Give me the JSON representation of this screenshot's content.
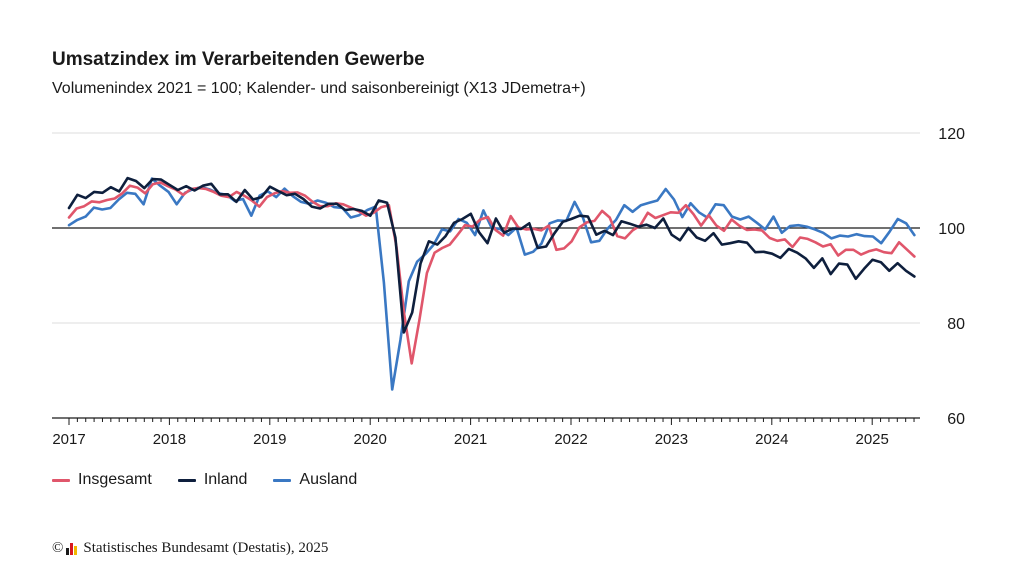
{
  "header": {
    "title": "Umsatzindex im Verarbeitenden Gewerbe",
    "subtitle": "Volumenindex 2021 = 100; Kalender- und saisonbereinigt (X13 JDemetra+)"
  },
  "footer": {
    "copyright_symbol": "©",
    "source": "Statistisches Bundesamt (Destatis), 2025",
    "logo_colors": [
      "#1a1a1a",
      "#d71920",
      "#f2b800"
    ]
  },
  "chart_data": {
    "type": "line",
    "ylim": [
      60,
      120
    ],
    "yticks": [
      60,
      80,
      100,
      120
    ],
    "reference_line": 100,
    "x_start_year": 2017,
    "x_end_year": 2025.42,
    "xticks": [
      "2017",
      "2018",
      "2019",
      "2020",
      "2021",
      "2022",
      "2023",
      "2024",
      "2025"
    ],
    "grid": true,
    "legend_position": "bottom-left",
    "series": [
      {
        "name": "Insgesamt",
        "color": "#e0566b",
        "values": [
          102.2,
          104.1,
          104.6,
          105.6,
          105.4,
          105.9,
          106.2,
          107.3,
          108.9,
          108.5,
          107.3,
          109.2,
          109.6,
          108.8,
          108.1,
          107.0,
          108.2,
          108.4,
          108.2,
          107.6,
          106.8,
          106.5,
          107.6,
          106.8,
          105.8,
          104.5,
          106.5,
          107.3,
          107.8,
          107.4,
          107.5,
          106.8,
          105.5,
          104.6,
          104.6,
          105.2,
          105.0,
          104.3,
          103.6,
          102.6,
          103.2,
          104.4,
          104.8,
          96.0,
          82.0,
          71.5,
          80.5,
          90.5,
          94.8,
          95.8,
          96.5,
          98.5,
          100.6,
          100.3,
          101.8,
          102.3,
          99.6,
          98.4,
          102.5,
          100.1,
          99.7,
          99.8,
          99.5,
          100.5,
          95.4,
          95.7,
          97.2,
          100.1,
          101.2,
          101.5,
          103.6,
          102.2,
          98.3,
          97.8,
          99.5,
          100.5,
          103.2,
          102.1,
          102.7,
          103.3,
          103.2,
          104.8,
          102.9,
          100.5,
          102.7,
          100.5,
          99.4,
          101.8,
          100.5,
          99.6,
          99.7,
          99.5,
          97.9,
          97.3,
          97.6,
          96.0,
          98.0,
          97.7,
          97.0,
          96.1,
          96.6,
          94.2,
          95.4,
          95.4,
          94.4,
          95.1,
          95.5,
          94.9,
          94.7,
          97.0,
          95.5,
          94.0
        ]
      },
      {
        "name": "Inland",
        "color": "#0e1f3d",
        "values": [
          104.2,
          107.0,
          106.3,
          107.6,
          107.4,
          108.6,
          107.7,
          110.5,
          109.9,
          108.4,
          110.3,
          110.2,
          109.1,
          108.0,
          108.8,
          107.9,
          108.9,
          109.3,
          107.1,
          107.1,
          105.5,
          108.0,
          106.0,
          106.5,
          108.7,
          107.8,
          106.9,
          107.2,
          106.1,
          104.5,
          104.1,
          105.1,
          105.1,
          103.8,
          104.0,
          103.6,
          102.6,
          105.8,
          105.3,
          98.0,
          78.0,
          82.2,
          92.5,
          97.2,
          96.5,
          98.3,
          101.1,
          101.9,
          103.0,
          99.1,
          96.8,
          102.0,
          99.0,
          99.9,
          99.8,
          101.0,
          95.8,
          96.1,
          98.9,
          101.3,
          101.9,
          102.6,
          102.4,
          98.6,
          99.4,
          98.5,
          101.4,
          100.9,
          100.3,
          100.7,
          100.0,
          102.0,
          98.6,
          97.4,
          100.0,
          98.0,
          97.3,
          98.9,
          96.5,
          96.8,
          97.2,
          96.9,
          94.9,
          95.0,
          94.6,
          93.7,
          95.6,
          94.8,
          93.6,
          91.6,
          93.6,
          90.3,
          92.5,
          92.3,
          89.3,
          91.4,
          93.3,
          92.8,
          91.0,
          92.6,
          91.0,
          89.8
        ]
      },
      {
        "name": "Ausland",
        "color": "#3a78c3",
        "values": [
          100.6,
          101.7,
          102.4,
          104.3,
          103.9,
          104.2,
          106.0,
          107.4,
          107.2,
          105.0,
          110.4,
          108.9,
          107.6,
          105.0,
          107.4,
          108.2,
          108.6,
          108.1,
          107.3,
          107.0,
          105.7,
          106.1,
          102.6,
          106.8,
          107.7,
          106.5,
          108.3,
          106.7,
          105.5,
          105.1,
          105.8,
          105.3,
          104.4,
          104.2,
          102.2,
          102.7,
          103.8,
          104.5,
          88.5,
          66.0,
          76.5,
          88.8,
          92.9,
          94.5,
          96.5,
          99.7,
          99.3,
          101.9,
          101.1,
          98.5,
          103.7,
          100.0,
          99.8,
          98.5,
          100.1,
          94.4,
          95.0,
          96.7,
          101.0,
          101.6,
          101.5,
          105.5,
          102.2,
          97.0,
          97.3,
          99.9,
          101.7,
          104.8,
          103.4,
          104.8,
          105.3,
          105.8,
          108.2,
          106.0,
          102.3,
          105.2,
          103.3,
          102.2,
          105.0,
          104.8,
          102.4,
          101.8,
          102.4,
          101.1,
          99.7,
          102.4,
          99.0,
          100.4,
          100.6,
          100.3,
          99.7,
          99.0,
          97.8,
          98.4,
          98.2,
          98.7,
          98.3,
          98.2,
          96.8,
          99.2,
          101.9,
          101.0,
          98.5
        ]
      }
    ]
  }
}
